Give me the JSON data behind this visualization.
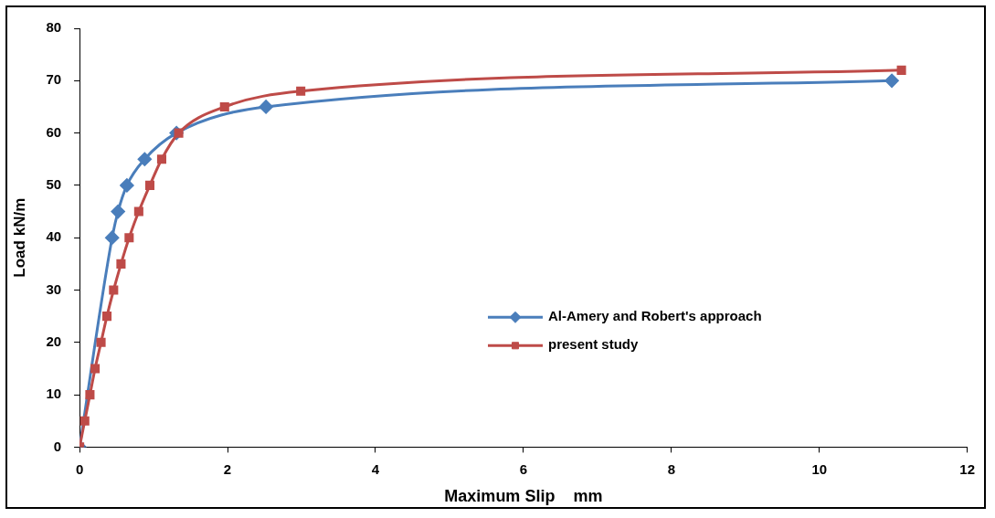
{
  "chart_data": {
    "type": "line",
    "xlabel": "Maximum Slip    mm",
    "ylabel": "Load kN/m",
    "xlim": [
      0,
      12
    ],
    "xticks": [
      0,
      2,
      4,
      6,
      8,
      10,
      12
    ],
    "ylim": [
      0,
      80
    ],
    "yticks": [
      0,
      10,
      20,
      30,
      40,
      50,
      60,
      70,
      80
    ],
    "grid": false,
    "legend": "right",
    "series": [
      {
        "name": "Al-Amery and Robert's approach",
        "color": "#4a7ebb",
        "marker": "diamond",
        "x": [
          0,
          0.44,
          0.52,
          0.64,
          0.88,
          1.31,
          2.52,
          10.98
        ],
        "values": [
          0,
          40,
          45,
          50,
          55,
          60,
          65,
          70
        ]
      },
      {
        "name": "present study",
        "color": "#be4b48",
        "marker": "square",
        "x": [
          0,
          0.07,
          0.14,
          0.21,
          0.29,
          0.37,
          0.46,
          0.56,
          0.67,
          0.8,
          0.95,
          1.11,
          1.34,
          1.96,
          2.99,
          11.11
        ],
        "values": [
          0,
          5,
          10,
          15,
          20,
          25,
          30,
          35,
          40,
          45,
          50,
          55,
          60,
          65,
          68,
          72
        ]
      }
    ]
  }
}
